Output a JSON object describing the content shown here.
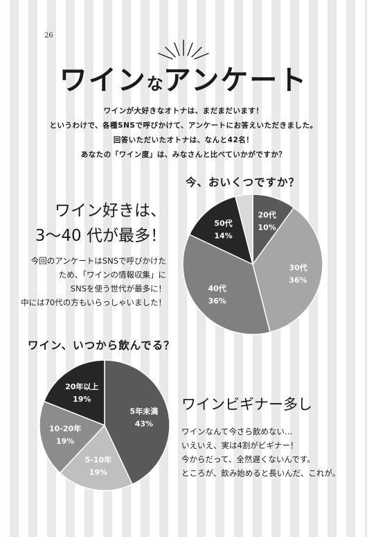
{
  "page_number": "26",
  "title": {
    "main": "ワイン",
    "small": "な",
    "rest": "アンケート"
  },
  "intro": [
    "ワインが大好きなオトナは、まだまだいます！",
    "というわけで、各種SNSで呼びかけて、アンケートにお答えいただきました。",
    "回答いただいたオトナは、なんと42名！",
    "あなたの「ワイン度」は、みなさんと比べていかがですか？"
  ],
  "section1": {
    "question": "今、おいくつですか？",
    "headline": [
      "ワイン好きは、",
      "3〜40 代が最多！"
    ],
    "body": [
      "今回のアンケートはSNSで呼びかけた",
      "ため、「ワインの情報収集」に",
      "SNSを使う世代が最多に！",
      "中には70代の方もいらっしゃいました！"
    ]
  },
  "section2": {
    "question": "ワイン、いつから飲んでる？",
    "headline": "ワインビギナー多し",
    "body": [
      "ワインなんて今さら飲めない…",
      "いえいえ、実は4割がビギナー！",
      "今からだって、全然遅くないんです。",
      "ところが、飲み始めると長いんだ、これが。"
    ]
  },
  "chart_data": [
    {
      "type": "pie",
      "title": "今、おいくつですか？",
      "slices": [
        {
          "label": "20代",
          "value_label": "10%",
          "value": 10,
          "color": "#595959",
          "text_color": "#ffffff"
        },
        {
          "label": "30代",
          "value_label": "36%",
          "value": 36,
          "color": "#a6a6a6",
          "text_color": "#ffffff"
        },
        {
          "label": "40代",
          "value_label": "36%",
          "value": 36,
          "color": "#808080",
          "text_color": "#ffffff"
        },
        {
          "label": "50代",
          "value_label": "14%",
          "value": 14,
          "color": "#262626",
          "text_color": "#ffffff"
        },
        {
          "label": "",
          "value_label": "",
          "value": 4,
          "color": "#d9d9d9",
          "text_color": "#ffffff"
        }
      ]
    },
    {
      "type": "pie",
      "title": "ワイン、いつから飲んでる？",
      "slices": [
        {
          "label": "5年未満",
          "value_label": "43%",
          "value": 43,
          "color": "#595959",
          "text_color": "#ffffff"
        },
        {
          "label": "5-10年",
          "value_label": "19%",
          "value": 19,
          "color": "#bfbfbf",
          "text_color": "#ffffff"
        },
        {
          "label": "10-20年",
          "value_label": "19%",
          "value": 19,
          "color": "#8c8c8c",
          "text_color": "#ffffff"
        },
        {
          "label": "20年以上",
          "value_label": "19%",
          "value": 19,
          "color": "#262626",
          "text_color": "#ffffff"
        }
      ]
    }
  ]
}
